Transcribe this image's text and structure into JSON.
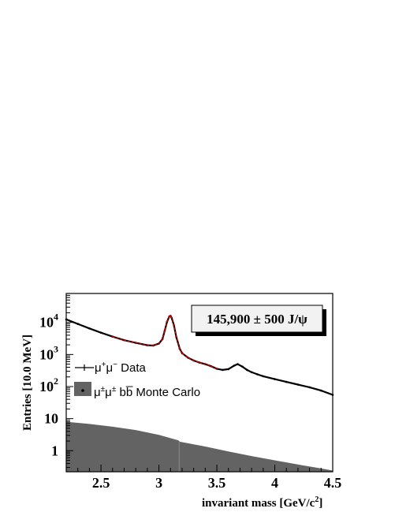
{
  "chart_data": {
    "type": "line",
    "y_scale": "log",
    "xlim": [
      2.2,
      4.5
    ],
    "ylim": [
      0.22,
      80000
    ],
    "xlabel": "invariant mass [GeV/c",
    "xlabel_sup": "2",
    "xlabel_end": "]",
    "ylabel": "Entries [10.0 MeV]",
    "x_ticks": [
      {
        "value": 2.5,
        "label": "2.5"
      },
      {
        "value": 3.0,
        "label": "3"
      },
      {
        "value": 3.5,
        "label": "3.5"
      },
      {
        "value": 4.0,
        "label": "4"
      },
      {
        "value": 4.5,
        "label": "4.5"
      }
    ],
    "y_ticks": [
      {
        "value": 1,
        "label": "1",
        "exp": ""
      },
      {
        "value": 10,
        "label": "10",
        "exp": ""
      },
      {
        "value": 100,
        "label": "10",
        "exp": "2"
      },
      {
        "value": 1000,
        "label": "10",
        "exp": "3"
      },
      {
        "value": 10000,
        "label": "10",
        "exp": "4"
      }
    ],
    "annotation": "145,900 ± 500 J/ψ",
    "legend": [
      {
        "label": "μ",
        "sup1": "+",
        "mid": "μ",
        "sup2": "−",
        "tail": " Data",
        "kind": "line",
        "color": "#000000"
      },
      {
        "label": "μ",
        "sup1": "±",
        "mid": "μ",
        "sup2": "±",
        "tail": " bb̅ Monte Carlo",
        "kind": "fill",
        "color": "#636363"
      }
    ],
    "series": [
      {
        "name": "μ⁺μ⁻ Data",
        "color": "#000000",
        "x": [
          2.2,
          2.3,
          2.4,
          2.5,
          2.6,
          2.7,
          2.8,
          2.9,
          2.95,
          3.0,
          3.03,
          3.05,
          3.07,
          3.09,
          3.1,
          3.11,
          3.13,
          3.15,
          3.18,
          3.2,
          3.25,
          3.3,
          3.35,
          3.4,
          3.45,
          3.5,
          3.55,
          3.6,
          3.65,
          3.68,
          3.72,
          3.76,
          3.8,
          3.85,
          3.9,
          4.0,
          4.1,
          4.2,
          4.3,
          4.4,
          4.5
        ],
        "y": [
          12500,
          9000,
          6500,
          4800,
          3600,
          2800,
          2300,
          1950,
          1900,
          2200,
          3000,
          5500,
          10500,
          15500,
          16000,
          14000,
          8000,
          3500,
          1500,
          1100,
          800,
          650,
          560,
          500,
          430,
          360,
          330,
          350,
          450,
          500,
          420,
          330,
          280,
          240,
          210,
          170,
          140,
          115,
          95,
          75,
          55
        ]
      },
      {
        "name": "fit",
        "color": "#cc0000",
        "x": [
          2.6,
          2.7,
          2.8,
          2.9,
          2.95,
          3.0,
          3.03,
          3.05,
          3.07,
          3.09,
          3.1,
          3.11,
          3.13,
          3.15,
          3.18,
          3.2,
          3.25,
          3.3,
          3.35,
          3.4,
          3.45,
          3.5
        ],
        "y": [
          3600,
          2800,
          2300,
          1950,
          1900,
          2200,
          3000,
          5500,
          10500,
          15500,
          16000,
          14000,
          8000,
          3500,
          1500,
          1100,
          800,
          650,
          560,
          500,
          430,
          360
        ]
      },
      {
        "name": "μ±μ± bb̅ Monte Carlo",
        "color": "#636363",
        "kind": "fill",
        "x": [
          2.2,
          2.4,
          2.6,
          2.8,
          3.0,
          3.17,
          3.18,
          3.4,
          3.6,
          3.8,
          4.0,
          4.2,
          4.4,
          4.5
        ],
        "y": [
          8.0,
          6.8,
          5.6,
          4.4,
          3.1,
          2.1,
          1.9,
          1.35,
          0.95,
          0.68,
          0.5,
          0.37,
          0.28,
          0.24
        ]
      }
    ]
  }
}
